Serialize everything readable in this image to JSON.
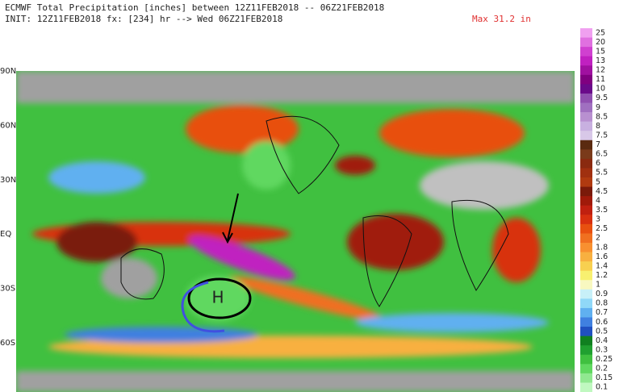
{
  "header": {
    "line1": "ECMWF Total Precipitation [inches] between 12Z11FEB2018 -- 06Z21FEB2018",
    "line2": "INIT: 12Z11FEB2018 fx: [234] hr --> Wed 06Z21FEB2018",
    "max": "Max 31.2 in"
  },
  "map": {
    "latitudes": [
      "90N",
      "60N",
      "30N",
      "EQ",
      "30S",
      "60S"
    ],
    "high_label": "H"
  },
  "colorbar": [
    {
      "label": "25",
      "color": "#f0a0f0"
    },
    {
      "label": "20",
      "color": "#e070e0"
    },
    {
      "label": "15",
      "color": "#d040d0"
    },
    {
      "label": "13",
      "color": "#c020c0"
    },
    {
      "label": "12",
      "color": "#a010a0"
    },
    {
      "label": "11",
      "color": "#800080"
    },
    {
      "label": "10",
      "color": "#6a0a8a"
    },
    {
      "label": "9.5",
      "color": "#9050b0"
    },
    {
      "label": "9",
      "color": "#a070c0"
    },
    {
      "label": "8.5",
      "color": "#b890d0"
    },
    {
      "label": "8",
      "color": "#c8b0e0"
    },
    {
      "label": "7.5",
      "color": "#d8c8e8"
    },
    {
      "label": "7",
      "color": "#5a2a10"
    },
    {
      "label": "6.5",
      "color": "#7a3a1a"
    },
    {
      "label": "6",
      "color": "#8a2a10"
    },
    {
      "label": "5.5",
      "color": "#a03010"
    },
    {
      "label": "5",
      "color": "#b03a10"
    },
    {
      "label": "4.5",
      "color": "#7a1a0a"
    },
    {
      "label": "4",
      "color": "#a01a0a"
    },
    {
      "label": "3.5",
      "color": "#c02010"
    },
    {
      "label": "3",
      "color": "#d83010"
    },
    {
      "label": "2.5",
      "color": "#e85010"
    },
    {
      "label": "2",
      "color": "#f07020"
    },
    {
      "label": "1.8",
      "color": "#f89030"
    },
    {
      "label": "1.6",
      "color": "#f8b040"
    },
    {
      "label": "1.4",
      "color": "#f8d050"
    },
    {
      "label": "1.2",
      "color": "#f8f070"
    },
    {
      "label": "1",
      "color": "#f8f8c0"
    },
    {
      "label": "0.9",
      "color": "#c8f0f8"
    },
    {
      "label": "0.8",
      "color": "#90d8f8"
    },
    {
      "label": "0.7",
      "color": "#60b0f0"
    },
    {
      "label": "0.6",
      "color": "#4080e0"
    },
    {
      "label": "0.5",
      "color": "#2050c0"
    },
    {
      "label": "0.4",
      "color": "#108020"
    },
    {
      "label": "0.3",
      "color": "#20a030"
    },
    {
      "label": "0.25",
      "color": "#40c040"
    },
    {
      "label": "0.2",
      "color": "#60d860"
    },
    {
      "label": "0.15",
      "color": "#90e890"
    },
    {
      "label": "0.1",
      "color": "#c0f8c0"
    }
  ]
}
